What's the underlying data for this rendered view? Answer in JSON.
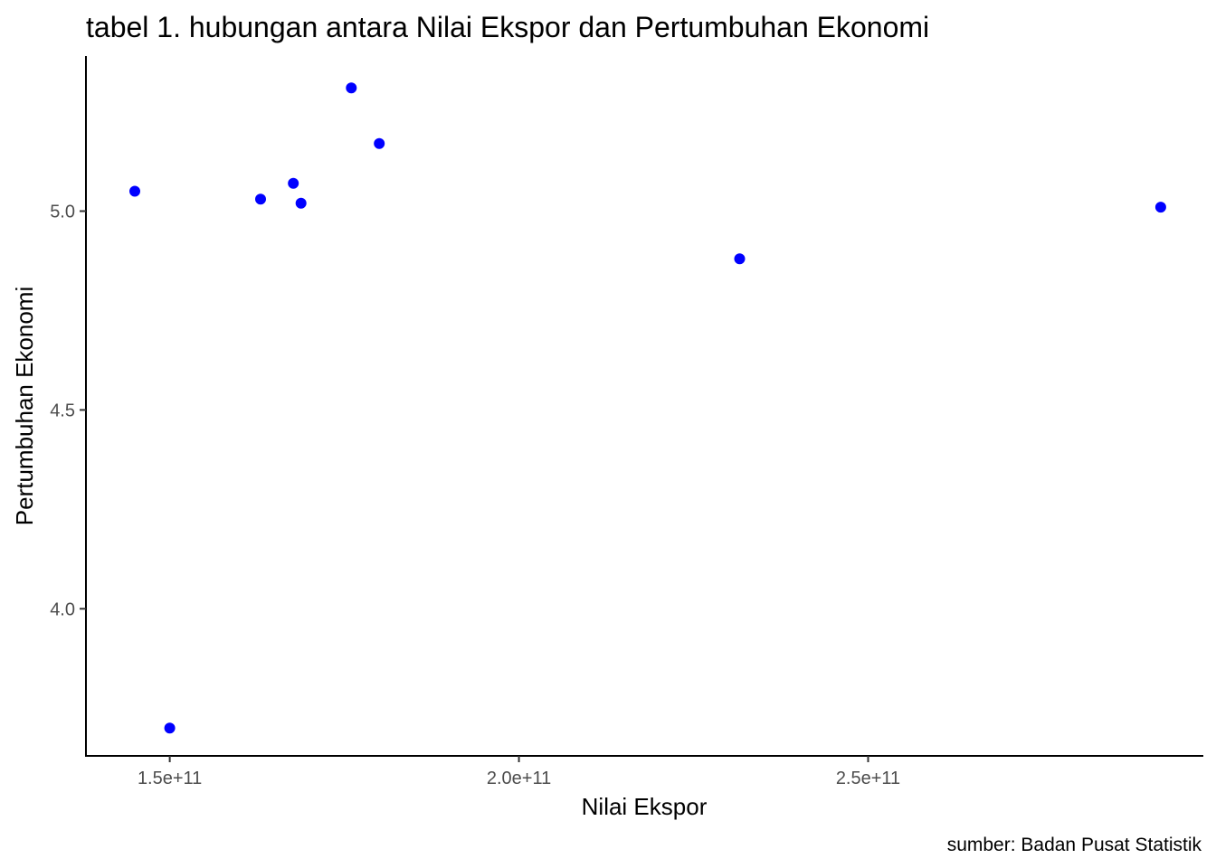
{
  "chart_data": {
    "type": "scatter",
    "title": "tabel 1. hubungan antara Nilai Ekspor dan Pertumbuhan Ekonomi",
    "xlabel": "Nilai Ekspor",
    "ylabel": "Pertumbuhan Ekonomi",
    "caption": "sumber: Badan Pusat Statistik",
    "xlim": [
      138000000000,
      298000000000
    ],
    "ylim": [
      3.63,
      5.39
    ],
    "x_ticks": [
      {
        "value": 150000000000,
        "label": "1.5e+11"
      },
      {
        "value": 200000000000,
        "label": "2.0e+11"
      },
      {
        "value": 250000000000,
        "label": "2.5e+11"
      }
    ],
    "y_ticks": [
      {
        "value": 4.0,
        "label": "4.0"
      },
      {
        "value": 4.5,
        "label": "4.5"
      },
      {
        "value": 5.0,
        "label": "5.0"
      }
    ],
    "grid": false,
    "legend": "none",
    "point_color": "#0000FF",
    "points": [
      {
        "x": 145000000000,
        "y": 5.05
      },
      {
        "x": 150000000000,
        "y": 3.7
      },
      {
        "x": 163000000000,
        "y": 5.03
      },
      {
        "x": 167700000000,
        "y": 5.07
      },
      {
        "x": 168800000000,
        "y": 5.02
      },
      {
        "x": 176000000000,
        "y": 5.31
      },
      {
        "x": 180000000000,
        "y": 5.17
      },
      {
        "x": 231600000000,
        "y": 4.88
      },
      {
        "x": 291900000000,
        "y": 5.01
      }
    ]
  }
}
